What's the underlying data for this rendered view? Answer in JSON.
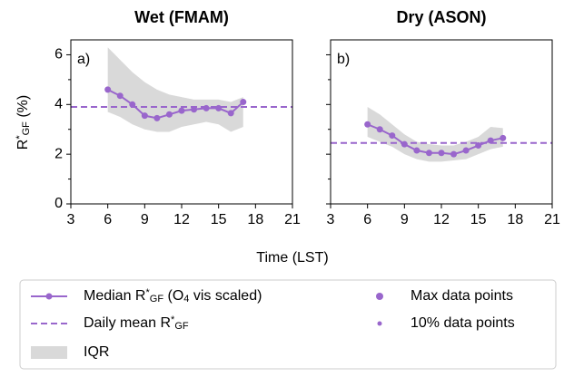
{
  "chart_data": [
    {
      "type": "line",
      "title": "Wet (FMAM)",
      "panel_label": "a)",
      "x": [
        6,
        7,
        8,
        9,
        10,
        11,
        12,
        13,
        14,
        15,
        16,
        17
      ],
      "median": [
        4.6,
        4.35,
        4.0,
        3.55,
        3.45,
        3.6,
        3.75,
        3.8,
        3.85,
        3.85,
        3.65,
        4.1
      ],
      "iqr_upper": [
        6.3,
        5.8,
        5.3,
        4.9,
        4.6,
        4.4,
        4.3,
        4.2,
        4.2,
        4.2,
        4.1,
        4.3
      ],
      "iqr_lower": [
        3.7,
        3.5,
        3.2,
        3.0,
        2.9,
        2.9,
        3.1,
        3.2,
        3.3,
        3.2,
        2.9,
        3.1
      ],
      "mean": 3.9,
      "color": "#9966cc",
      "iqr_color": "#d9d9d9",
      "xlim": [
        3,
        21
      ],
      "xticks": [
        3,
        6,
        9,
        12,
        15,
        18,
        21
      ],
      "ylim": [
        0,
        6.6
      ],
      "yticks": [
        0,
        2,
        4,
        6
      ],
      "yminor": [
        1,
        3,
        5
      ],
      "show_yticklabels": true
    },
    {
      "type": "line",
      "title": "Dry (ASON)",
      "panel_label": "b)",
      "x": [
        6,
        7,
        8,
        9,
        10,
        11,
        12,
        13,
        14,
        15,
        16,
        17
      ],
      "median": [
        3.2,
        3.0,
        2.75,
        2.4,
        2.15,
        2.05,
        2.05,
        2.0,
        2.15,
        2.35,
        2.55,
        2.65
      ],
      "iqr_upper": [
        3.9,
        3.6,
        3.2,
        2.8,
        2.5,
        2.4,
        2.35,
        2.35,
        2.5,
        2.7,
        3.1,
        3.05
      ],
      "iqr_lower": [
        2.7,
        2.5,
        2.3,
        2.0,
        1.8,
        1.7,
        1.7,
        1.75,
        1.8,
        2.0,
        2.2,
        2.3
      ],
      "mean": 2.45,
      "color": "#9966cc",
      "iqr_color": "#d9d9d9",
      "xlim": [
        3,
        21
      ],
      "xticks": [
        3,
        6,
        9,
        12,
        15,
        18,
        21
      ],
      "ylim": [
        0,
        6.6
      ],
      "yticks": [
        0,
        2,
        4,
        6
      ],
      "yminor": [
        1,
        3,
        5
      ],
      "show_yticklabels": false
    }
  ],
  "xlabel": "Time (LST)",
  "ylabel": [
    {
      "text": "R"
    },
    {
      "text": "*",
      "shift": "sup"
    },
    {
      "text": "GF",
      "shift": "sub"
    },
    {
      "text": " (%)"
    }
  ],
  "legend": [
    {
      "kind": "line-marker",
      "label": [
        {
          "text": "Median R"
        },
        {
          "text": "*",
          "shift": "sup"
        },
        {
          "text": "GF",
          "shift": "sub"
        },
        {
          "text": " (O"
        },
        {
          "text": "4",
          "shift": "sub"
        },
        {
          "text": " vis scaled)"
        }
      ]
    },
    {
      "kind": "dashed",
      "label": [
        {
          "text": "Daily mean R"
        },
        {
          "text": "*",
          "shift": "sup"
        },
        {
          "text": "GF",
          "shift": "sub"
        }
      ]
    },
    {
      "kind": "patch",
      "label": [
        {
          "text": "IQR"
        }
      ]
    },
    {
      "kind": "dot-large",
      "label": [
        {
          "text": "Max data points"
        }
      ]
    },
    {
      "kind": "dot-small",
      "label": [
        {
          "text": "10% data points"
        }
      ]
    }
  ]
}
